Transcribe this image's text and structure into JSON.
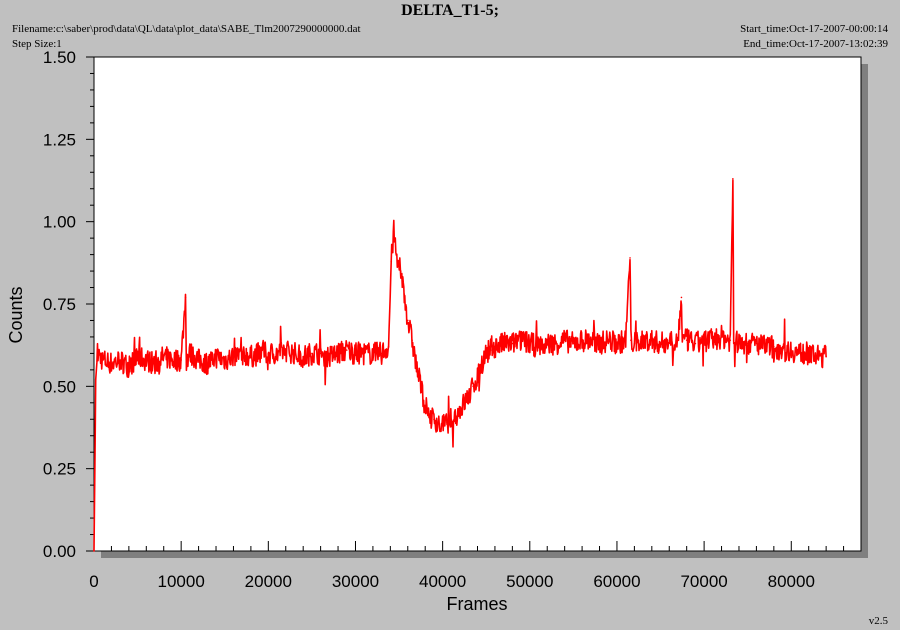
{
  "header": {
    "title": "DELTA_T1-5;",
    "filename": "Filename:c:\\saber\\prod\\data\\QL\\data\\plot_data\\SABE_Tlm2007290000000.dat",
    "step_size": "Step Size:1",
    "start_time": "Start_time:Oct-17-2007-00:00:14",
    "end_time": "End_time:Oct-17-2007-13:02:39",
    "version": "v2.5"
  },
  "colors": {
    "series": "#ff0000",
    "plot_background": "#ffffff",
    "page_background": "#c0c0c0"
  },
  "chart_data": {
    "type": "line",
    "title": "DELTA_T1-5;",
    "xlabel": "Frames",
    "ylabel": "Counts",
    "xlim": [
      0,
      88000
    ],
    "ylim": [
      0,
      1.5
    ],
    "x_ticks": [
      "0",
      "10000",
      "20000",
      "30000",
      "40000",
      "50000",
      "60000",
      "70000",
      "80000"
    ],
    "y_ticks": [
      "0.00",
      "0.25",
      "0.50",
      "0.75",
      "1.00",
      "1.25",
      "1.50"
    ],
    "grid": false,
    "series": [
      {
        "x": [
          0,
          200,
          400,
          1000,
          2000,
          3000,
          4000,
          5000,
          6000,
          7000,
          8000,
          9000,
          10000,
          10500,
          10600,
          11000,
          12000,
          13000,
          14000,
          15000,
          16000,
          17000,
          18000,
          19000,
          20000,
          21000,
          22000,
          23000,
          24000,
          25000,
          26000,
          27000,
          28000,
          29000,
          30000,
          31000,
          32000,
          33000,
          33800,
          34100,
          34400,
          34800,
          35200,
          35600,
          36000,
          36500,
          37000,
          37500,
          38000,
          38500,
          39000,
          39500,
          40000,
          40500,
          41000,
          41500,
          42000,
          42500,
          43000,
          43500,
          44000,
          44500,
          45000,
          45500,
          46000,
          47000,
          48000,
          49000,
          50000,
          51000,
          52000,
          53000,
          54000,
          55000,
          56000,
          57000,
          58000,
          59000,
          60000,
          61000,
          61500,
          61600,
          62000,
          63000,
          64000,
          65000,
          66000,
          67000,
          67400,
          67500,
          68000,
          69000,
          70000,
          71000,
          72000,
          73000,
          73300,
          73400,
          74000,
          75000,
          76000,
          77000,
          78000,
          79000,
          80000,
          81000,
          82000,
          83000,
          84000
        ],
        "values": [
          0.0,
          0.52,
          0.6,
          0.58,
          0.57,
          0.58,
          0.56,
          0.59,
          0.58,
          0.57,
          0.59,
          0.58,
          0.58,
          0.77,
          0.58,
          0.6,
          0.58,
          0.57,
          0.59,
          0.58,
          0.59,
          0.6,
          0.59,
          0.6,
          0.6,
          0.6,
          0.61,
          0.6,
          0.59,
          0.6,
          0.6,
          0.59,
          0.6,
          0.61,
          0.6,
          0.6,
          0.6,
          0.6,
          0.62,
          0.88,
          0.97,
          0.87,
          0.85,
          0.78,
          0.7,
          0.64,
          0.56,
          0.5,
          0.44,
          0.41,
          0.4,
          0.39,
          0.38,
          0.39,
          0.4,
          0.41,
          0.43,
          0.45,
          0.47,
          0.5,
          0.53,
          0.57,
          0.6,
          0.61,
          0.62,
          0.63,
          0.63,
          0.64,
          0.63,
          0.62,
          0.63,
          0.63,
          0.64,
          0.63,
          0.64,
          0.64,
          0.63,
          0.64,
          0.63,
          0.64,
          0.89,
          0.64,
          0.63,
          0.64,
          0.64,
          0.63,
          0.64,
          0.64,
          0.77,
          0.64,
          0.64,
          0.63,
          0.64,
          0.64,
          0.65,
          0.64,
          1.13,
          0.64,
          0.63,
          0.63,
          0.63,
          0.62,
          0.62,
          0.61,
          0.61,
          0.6,
          0.6,
          0.59,
          0.59
        ]
      }
    ]
  }
}
